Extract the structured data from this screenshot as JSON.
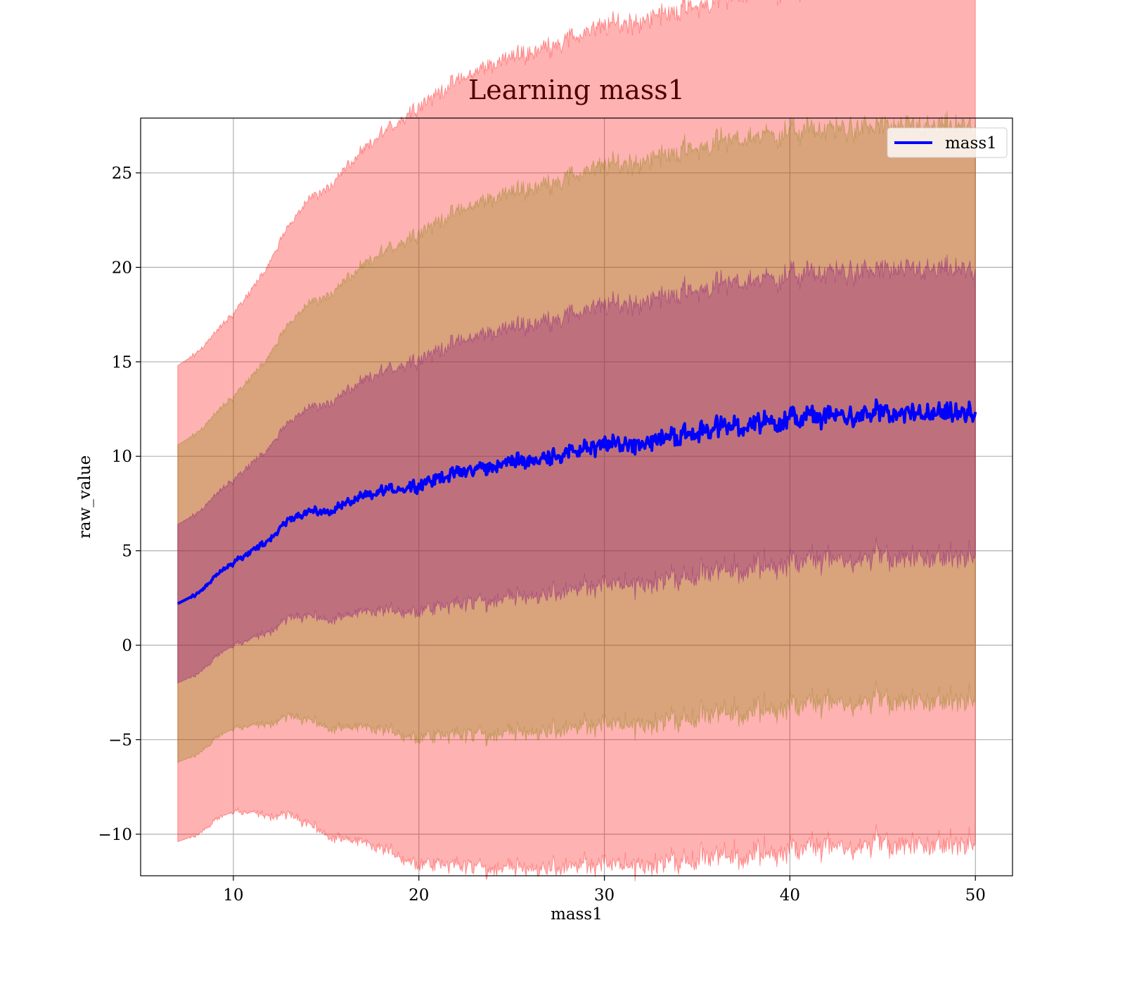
{
  "chart_data": {
    "type": "line",
    "title": "Learning mass1",
    "xlabel": "mass1",
    "ylabel": "raw_value",
    "xlim": [
      5,
      52
    ],
    "ylim": [
      -12.2,
      27.9
    ],
    "xticks": [
      10,
      20,
      30,
      40,
      50
    ],
    "yticks": [
      -10,
      -5,
      0,
      5,
      10,
      15,
      20,
      25
    ],
    "grid": true,
    "legend_position": "top-right",
    "colors": {
      "line": "#0000ff",
      "band_outer": "#ff0000",
      "band_middle": "#808000",
      "band_inner": "#800080",
      "grid": "#b0b0b0"
    },
    "bands_sigma": [
      3,
      2,
      1
    ],
    "series": [
      {
        "name": "mass1",
        "x": [
          7,
          8,
          9,
          10,
          11,
          12,
          13,
          14,
          15,
          16,
          17,
          18,
          19,
          20,
          22,
          24,
          26,
          28,
          30,
          32,
          34,
          36,
          38,
          40,
          42,
          44,
          46,
          48,
          50
        ],
        "mean": [
          2.2,
          2.7,
          3.6,
          4.4,
          5.0,
          5.6,
          6.7,
          7.1,
          7.0,
          7.5,
          7.8,
          8.2,
          8.3,
          8.5,
          9.1,
          9.5,
          9.8,
          10.2,
          10.5,
          10.8,
          11.1,
          11.5,
          11.7,
          12.0,
          12.1,
          12.2,
          12.2,
          12.2,
          12.2
        ],
        "std": [
          4.2,
          4.25,
          4.3,
          4.4,
          4.6,
          4.9,
          5.2,
          5.5,
          5.7,
          5.9,
          6.1,
          6.3,
          6.5,
          6.7,
          6.9,
          7.1,
          7.2,
          7.3,
          7.4,
          7.45,
          7.5,
          7.55,
          7.6,
          7.6,
          7.6,
          7.6,
          7.6,
          7.6,
          7.6
        ]
      }
    ]
  }
}
